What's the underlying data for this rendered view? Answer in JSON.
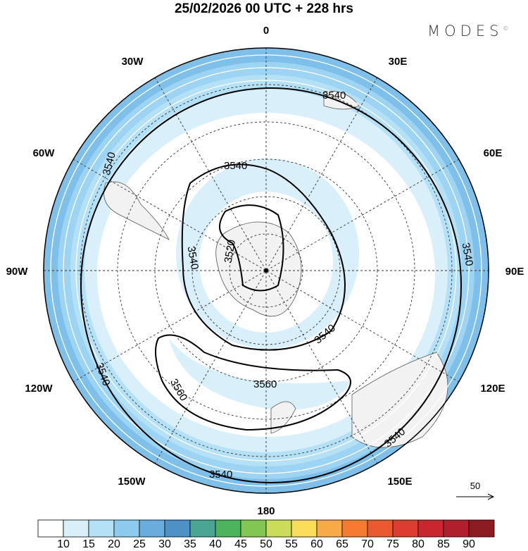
{
  "title": "25/02/2026  00 UTC  + 228 hrs",
  "logo": "MODES",
  "logo_mark": "©",
  "lon_labels": {
    "n": "0",
    "ne": "30E",
    "e60": "60E",
    "e90": "90E",
    "e120": "120E",
    "e150": "150E",
    "s": "180",
    "w150": "150W",
    "w120": "120W",
    "w90": "90W",
    "w60": "60W",
    "w30": "30W"
  },
  "contour_labels": [
    "3540",
    "3540",
    "3540",
    "3540",
    "3540",
    "3540",
    "3540",
    "3540",
    "3520",
    "3560",
    "3560",
    "3540"
  ],
  "vector_reference": "50",
  "colorbar": {
    "colors": [
      "#ffffff",
      "#d9f0fb",
      "#b5e1f7",
      "#8ccaee",
      "#6aaddc",
      "#4d91c6",
      "#4aa595",
      "#4db35c",
      "#82c653",
      "#cadc5a",
      "#fbdc5b",
      "#f8aa48",
      "#f57b33",
      "#ea5a30",
      "#de3c31",
      "#c9272f",
      "#b01f2c",
      "#8c1c22"
    ],
    "labels": [
      "10",
      "15",
      "20",
      "25",
      "30",
      "35",
      "40",
      "45",
      "50",
      "55",
      "60",
      "65",
      "70",
      "75",
      "80",
      "85",
      "90"
    ]
  }
}
